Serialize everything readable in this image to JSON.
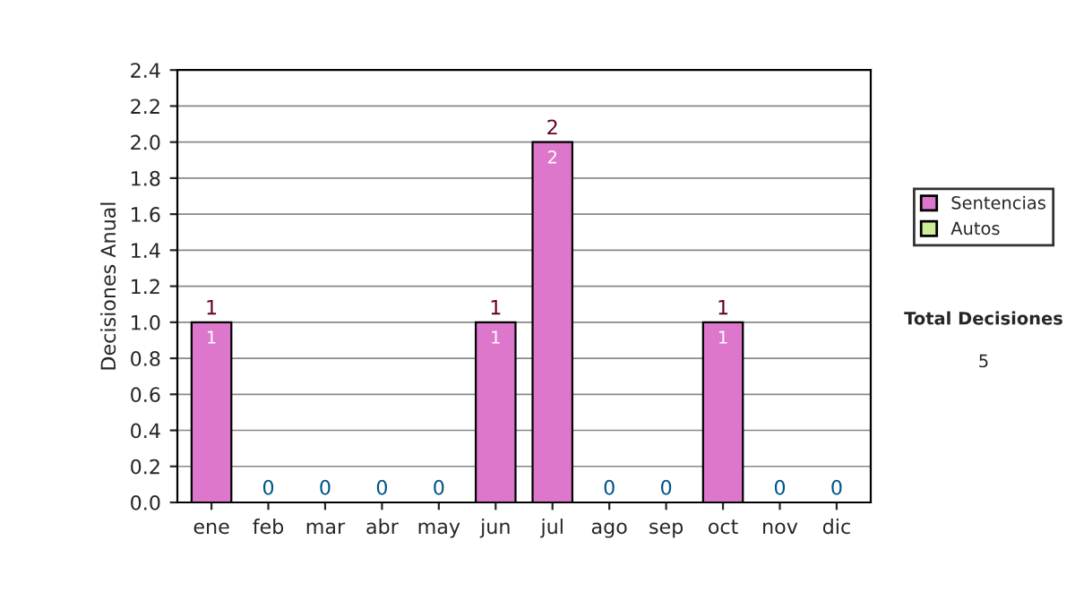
{
  "chart_data": {
    "type": "bar",
    "stacked": true,
    "ylabel": "Decisiones Anual",
    "categories": [
      "ene",
      "feb",
      "mar",
      "abr",
      "may",
      "jun",
      "jul",
      "ago",
      "sep",
      "oct",
      "nov",
      "dic"
    ],
    "series": [
      {
        "name": "Sentencias",
        "color": "#dd77cc",
        "values": [
          1,
          0,
          0,
          0,
          0,
          1,
          2,
          0,
          0,
          1,
          0,
          0
        ],
        "value_labels": [
          "1",
          null,
          null,
          null,
          null,
          "1",
          "2",
          null,
          null,
          "1",
          null,
          null
        ]
      },
      {
        "name": "Autos",
        "color": "#ccee99",
        "values": [
          0,
          0,
          0,
          0,
          0,
          0,
          0,
          0,
          0,
          0,
          0,
          0
        ]
      }
    ],
    "totals": [
      "1",
      "0",
      "0",
      "0",
      "0",
      "1",
      "2",
      "0",
      "0",
      "1",
      "0",
      "0"
    ],
    "ylim": [
      0,
      2.4
    ],
    "yticks": [
      {
        "value": 0,
        "label": "0.0"
      },
      {
        "value": 0.2,
        "label": "0.2"
      },
      {
        "value": 0.4,
        "label": "0.4"
      },
      {
        "value": 0.6,
        "label": "0.6"
      },
      {
        "value": 0.8,
        "label": "0.8"
      },
      {
        "value": 1.0,
        "label": "1.0"
      },
      {
        "value": 1.2,
        "label": "1.2"
      },
      {
        "value": 1.4,
        "label": "1.4"
      },
      {
        "value": 1.6,
        "label": "1.6"
      },
      {
        "value": 1.8,
        "label": "1.8"
      },
      {
        "value": 2.0,
        "label": "2.0"
      },
      {
        "value": 2.2,
        "label": "2.2"
      },
      {
        "value": 2.4,
        "label": "2.4"
      }
    ],
    "grid": "y",
    "legend": "right",
    "annotations": [
      "Total Decisiones",
      "5"
    ]
  }
}
